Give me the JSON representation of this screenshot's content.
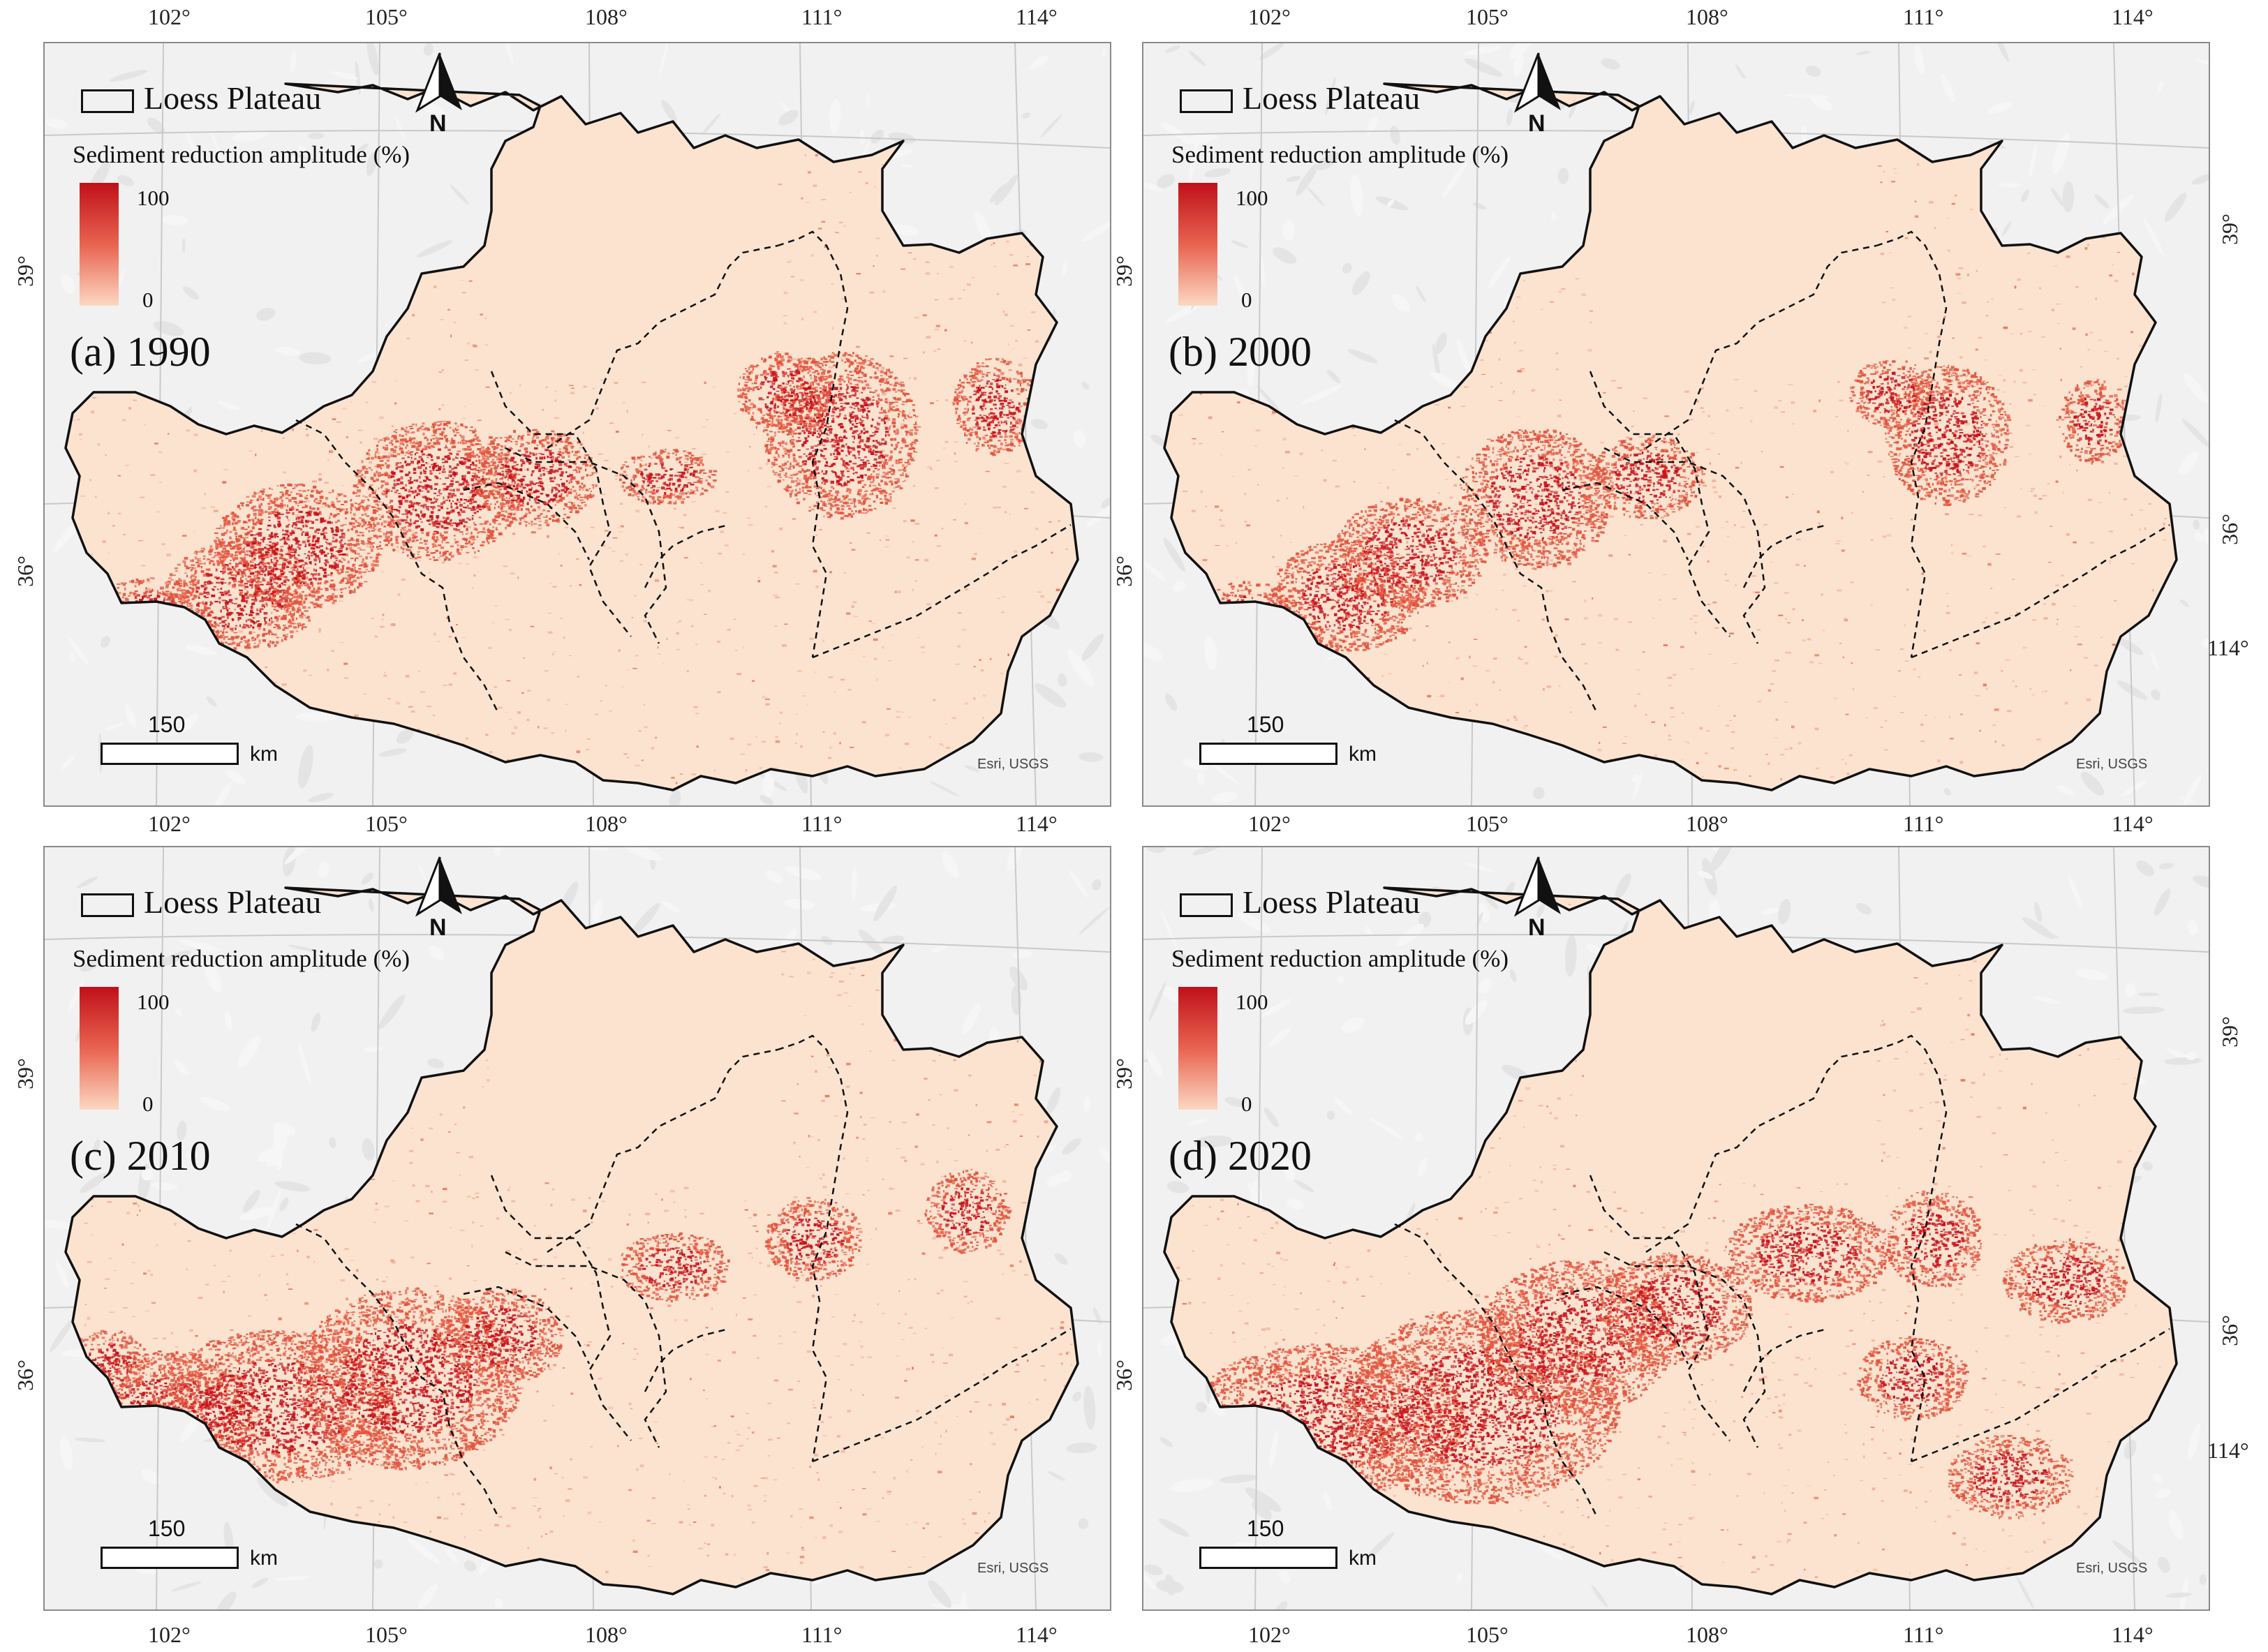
{
  "figure": {
    "legend": {
      "boundary_label": "Loess Plateau",
      "ramp_title": "Sediment reduction amplitude (%)",
      "ramp_max": "100",
      "ramp_min": "0",
      "ramp_colors": [
        "#c0101a",
        "#e8634f",
        "#fbd8c2"
      ]
    },
    "north_label": "N",
    "scale": {
      "value": "150",
      "unit": "km"
    },
    "attribution": "Esri, USGS",
    "longitude_ticks": [
      "102°",
      "105°",
      "108°",
      "111°",
      "114°"
    ],
    "latitude_ticks": [
      "39°",
      "36°"
    ],
    "corner_tick": "114°",
    "colors": {
      "plateau_fill": "#fbe3d0",
      "high_reduction": "#c8141c",
      "medium_reduction": "#e3553f",
      "hillshade_background": "#f1f1f1",
      "boundary": "#111111"
    },
    "panels": [
      {
        "label": "(a) 1990"
      },
      {
        "label": "(b) 2000"
      },
      {
        "label": "(c) 2010"
      },
      {
        "label": "(d) 2020"
      }
    ]
  }
}
